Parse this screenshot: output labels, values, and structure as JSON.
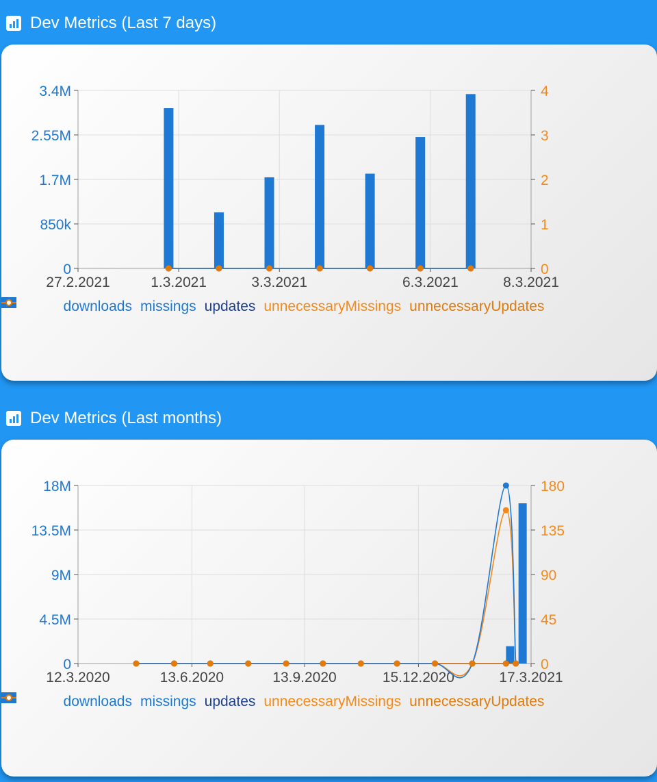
{
  "colors": {
    "downloads": "#1f78d1",
    "missings": "#1f78d1",
    "updates": "#1d3f8f",
    "unnecessaryMissings": "#f28a1c",
    "unnecessaryUpdates": "#e07b0c",
    "leftAxis": "#1f78d1",
    "rightAxis": "#f28a1c",
    "xAxis": "#444444"
  },
  "panels": [
    {
      "title": "Dev Metrics (Last 7 days)",
      "icon": "bar-chart-icon"
    },
    {
      "title": "Dev Metrics (Last months)",
      "icon": "bar-chart-icon"
    }
  ],
  "legend": [
    {
      "label": "downloads",
      "icon": "bar-swatch-icon"
    },
    {
      "label": "missings",
      "icon": "line-dot-icon"
    },
    {
      "label": "updates",
      "icon": "line-dot-icon"
    },
    {
      "label": "unnecessaryMissings",
      "icon": "line-dot-icon"
    },
    {
      "label": "unnecessaryUpdates",
      "icon": "line-dot-icon"
    }
  ],
  "chart_data": [
    {
      "type": "bar",
      "x_ticks": [
        "27.2.2021",
        "1.3.2021",
        "3.3.2021",
        "6.3.2021",
        "8.3.2021"
      ],
      "x_tick_days": [
        0,
        2,
        4,
        7,
        9
      ],
      "x_range_days": [
        0,
        9
      ],
      "y_left_ticks": [
        "0",
        "850k",
        "1.7M",
        "2.55M",
        "3.4M"
      ],
      "y_left_range": [
        0,
        3400000
      ],
      "y_right_ticks": [
        "0",
        "1",
        "2",
        "3",
        "4"
      ],
      "y_right_range": [
        0,
        4
      ],
      "grid": true,
      "legend_position": "bottom",
      "series": [
        {
          "name": "downloads",
          "type": "bar",
          "axis": "left",
          "x_days": [
            1.8,
            2.8,
            3.8,
            4.8,
            5.8,
            6.8,
            7.8
          ],
          "values": [
            3060000,
            1070000,
            1740000,
            2740000,
            1810000,
            2510000,
            3330000
          ]
        },
        {
          "name": "missings",
          "type": "line",
          "axis": "right",
          "x_days": [
            1.8,
            2.8,
            3.8,
            4.8,
            5.8,
            6.8,
            7.8
          ],
          "values": [
            0,
            0,
            0,
            0,
            0,
            0,
            0
          ]
        },
        {
          "name": "updates",
          "type": "line",
          "axis": "right",
          "x_days": [
            1.8,
            2.8,
            3.8,
            4.8,
            5.8,
            6.8,
            7.8
          ],
          "values": [
            0,
            0,
            0,
            0,
            0,
            0,
            0
          ]
        },
        {
          "name": "unnecessaryMissings",
          "type": "line",
          "axis": "right",
          "x_days": [
            1.8,
            2.8,
            3.8,
            4.8,
            5.8,
            6.8,
            7.8
          ],
          "values": [
            0,
            0,
            0,
            0,
            0,
            0,
            0
          ]
        },
        {
          "name": "unnecessaryUpdates",
          "type": "line",
          "axis": "right",
          "x_days": [
            1.8,
            2.8,
            3.8,
            4.8,
            5.8,
            6.8,
            7.8
          ],
          "values": [
            0,
            0,
            0,
            0,
            0,
            0,
            0
          ]
        }
      ]
    },
    {
      "type": "bar",
      "x_ticks": [
        "12.3.2020",
        "13.6.2020",
        "13.9.2020",
        "15.12.2020",
        "17.3.2021"
      ],
      "x_tick_days": [
        0,
        93,
        185,
        278,
        370
      ],
      "x_range_days": [
        0,
        370
      ],
      "y_left_ticks": [
        "0",
        "4.5M",
        "9M",
        "13.5M",
        "18M"
      ],
      "y_left_range": [
        0,
        18000000
      ],
      "y_right_ticks": [
        "0",
        "45",
        "90",
        "135",
        "180"
      ],
      "y_right_range": [
        0,
        180
      ],
      "grid": true,
      "legend_position": "bottom",
      "series": [
        {
          "name": "downloads",
          "type": "bar",
          "axis": "left",
          "x_days": [
            352.9,
            363.1
          ],
          "values": [
            1750000,
            16200000
          ]
        },
        {
          "name": "missings",
          "type": "line",
          "axis": "right",
          "x_days": [
            47.5,
            78.5,
            108,
            139,
            170,
            200,
            231,
            260.5,
            291.5,
            322,
            349.5,
            357.5
          ],
          "values": [
            0,
            0,
            0,
            0,
            0,
            0,
            0,
            0,
            0,
            0,
            180,
            0
          ]
        },
        {
          "name": "updates",
          "type": "line",
          "axis": "right",
          "x_days": [
            47.5,
            78.5,
            108,
            139,
            170,
            200,
            231,
            260.5,
            291.5,
            322,
            349.5,
            357.5
          ],
          "values": [
            0,
            0,
            0,
            0,
            0,
            0,
            0,
            0,
            0,
            0,
            0,
            0
          ]
        },
        {
          "name": "unnecessaryMissings",
          "type": "line",
          "axis": "right",
          "x_days": [
            47.5,
            78.5,
            108,
            139,
            170,
            200,
            231,
            260.5,
            291.5,
            322,
            349.5,
            357.5
          ],
          "values": [
            0,
            0,
            0,
            0,
            0,
            0,
            0,
            0,
            0,
            0,
            155,
            0
          ]
        },
        {
          "name": "unnecessaryUpdates",
          "type": "line",
          "axis": "right",
          "x_days": [
            47.5,
            78.5,
            108,
            139,
            170,
            200,
            231,
            260.5,
            291.5,
            322,
            349.5,
            357.5
          ],
          "values": [
            0,
            0,
            0,
            0,
            0,
            0,
            0,
            0,
            0,
            0,
            0,
            0
          ]
        }
      ]
    }
  ]
}
